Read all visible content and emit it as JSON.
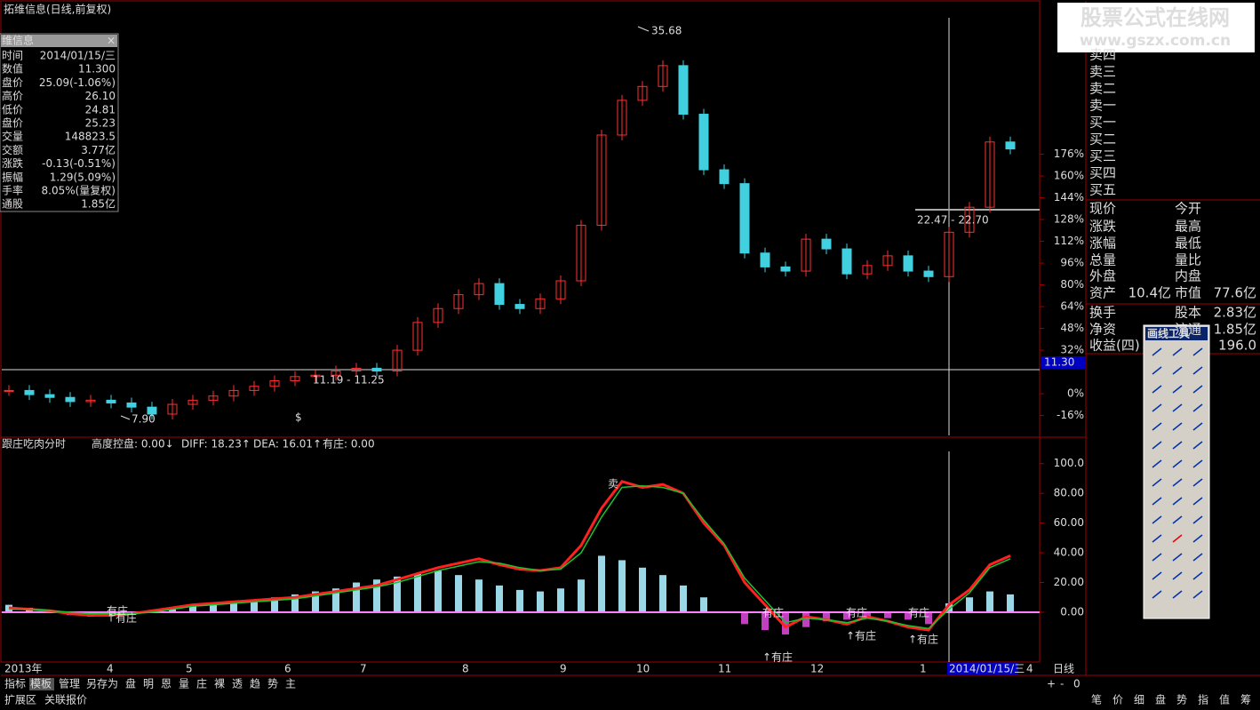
{
  "window_title": "拓维信息(日线,前复权)",
  "info_panel": {
    "title": "维信息",
    "rows": [
      {
        "label": "时间",
        "value": "2014/01/15/三",
        "color": "#ddd"
      },
      {
        "label": "数值",
        "value": "11.300",
        "color": "#ddd"
      },
      {
        "label": "盘价",
        "value": "25.09(-1.06%)",
        "color": "#2ecc40"
      },
      {
        "label": "高价",
        "value": "26.10",
        "color": "#ff3030"
      },
      {
        "label": "低价",
        "value": "24.81",
        "color": "#2ecc40"
      },
      {
        "label": "盘价",
        "value": "25.23",
        "color": "#2ecc40"
      },
      {
        "label": "交量",
        "value": "148823.5",
        "color": "#ddd"
      },
      {
        "label": "交额",
        "value": "3.77亿",
        "color": "#ddd"
      },
      {
        "label": "涨跌",
        "value": "-0.13(-0.51%)",
        "color": "#2ecc40"
      },
      {
        "label": "振幅",
        "value": "1.29(5.09%)",
        "color": "#ddd"
      },
      {
        "label": "手率",
        "value": "8.05%(量复权)",
        "color": "#ddd"
      },
      {
        "label": "通股",
        "value": "1.85亿",
        "color": "#ddd"
      }
    ]
  },
  "price_chart": {
    "type": "candlestick",
    "close": [
      9.6,
      9.3,
      9.1,
      8.8,
      8.9,
      8.7,
      8.4,
      7.9,
      8.6,
      8.9,
      9.2,
      9.6,
      9.9,
      10.3,
      10.6,
      10.7,
      11.0,
      11.2,
      11.0,
      12.5,
      14.5,
      15.5,
      16.5,
      17.3,
      15.8,
      15.5,
      16.2,
      17.5,
      21.5,
      28.0,
      30.5,
      31.5,
      33.0,
      29.5,
      25.5,
      24.5,
      19.5,
      18.5,
      18.2,
      20.5,
      19.8,
      18.0,
      18.6,
      19.3,
      18.2,
      17.8,
      21.0,
      22.8,
      27.5,
      27.0
    ],
    "up_color": "#ff3030",
    "down_color": "#40d0e0",
    "ylim": [
      6.17,
      37.6
    ],
    "y2lim": [
      -32.6,
      288
    ],
    "y2ticks": [
      {
        "value": 176,
        "label": "176%"
      },
      {
        "value": 160,
        "label": "160%"
      },
      {
        "value": 144,
        "label": "144%"
      },
      {
        "value": 128,
        "label": "128%"
      },
      {
        "value": 112,
        "label": "112%"
      },
      {
        "value": 96,
        "label": "96%"
      },
      {
        "value": 80,
        "label": "80%"
      },
      {
        "value": 64,
        "label": "64%"
      },
      {
        "value": 48,
        "label": "48%"
      },
      {
        "value": 32,
        "label": "32%"
      },
      {
        "value": 0,
        "label": "0%"
      },
      {
        "value": -16,
        "label": "-16%"
      }
    ],
    "high_label": "35.68",
    "low_label": "7.90",
    "range_labels": [
      "11.19 - 11.25",
      "22.47 - 22.70"
    ],
    "cursor_label": "11.30",
    "marker": "$"
  },
  "indicator": {
    "type": "line",
    "name": "跟庄吃肉分时",
    "legend": [
      {
        "text": "高度控盘: 0.00↓",
        "color": "#e040e0"
      },
      {
        "text": "DIFF: 18.23↑",
        "color": "#ff3030"
      },
      {
        "text": "DEA: 16.01↑",
        "color": "#2ecc40"
      },
      {
        "text": "有庄: 0.00",
        "color": "#ddd"
      }
    ],
    "series": [
      {
        "name": "DIFF",
        "color": "#ff2020",
        "values": [
          3,
          2,
          1,
          -1,
          -2,
          -2,
          -1,
          1,
          3,
          5,
          6,
          7,
          8,
          9,
          10,
          12,
          14,
          16,
          18,
          22,
          26,
          30,
          33,
          36,
          32,
          29,
          28,
          30,
          45,
          70,
          88,
          84,
          86,
          80,
          60,
          45,
          20,
          5,
          -10,
          -3,
          -5,
          -8,
          -3,
          -6,
          -10,
          -12,
          5,
          15,
          32,
          38
        ]
      },
      {
        "name": "DEA",
        "color": "#20c030",
        "values": [
          2,
          2,
          1,
          0,
          -1,
          -1,
          -1,
          0,
          2,
          4,
          5,
          6,
          7,
          8,
          9,
          11,
          13,
          15,
          17,
          20,
          24,
          28,
          31,
          34,
          33,
          30,
          28,
          29,
          40,
          64,
          84,
          85,
          84,
          80,
          62,
          46,
          23,
          8,
          -7,
          -4,
          -5,
          -7,
          -4,
          -6,
          -9,
          -11,
          2,
          13,
          30,
          36
        ]
      }
    ],
    "bars": [
      5,
      3,
      1,
      -2,
      -3,
      -2,
      -1,
      1,
      3,
      5,
      6,
      7,
      8,
      10,
      12,
      14,
      16,
      20,
      22,
      24,
      26,
      28,
      25,
      22,
      18,
      15,
      14,
      16,
      22,
      38,
      35,
      30,
      25,
      18,
      10,
      0,
      -8,
      -12,
      -15,
      -10,
      -6,
      -5,
      -4,
      -4,
      -5,
      -8,
      6,
      10,
      14,
      12
    ],
    "bar_up_color": "#9ad8e8",
    "bar_down_color": "#c040c0",
    "ylim": [
      -33.5,
      110
    ],
    "yticks": [
      {
        "value": 100,
        "label": "100.0"
      },
      {
        "value": 80,
        "label": "80.00"
      },
      {
        "value": 60,
        "label": "60.00"
      },
      {
        "value": 40,
        "label": "40.00"
      },
      {
        "value": 20,
        "label": "20.00"
      },
      {
        "value": 0,
        "label": "0.00"
      }
    ],
    "annotations": [
      "有庄",
      "↑有庄",
      "有庄",
      "↑有庄",
      "有庄",
      "↑有庄",
      "有庄",
      "↑有庄",
      "卖"
    ]
  },
  "x_axis": {
    "labels": [
      "2013年",
      "4",
      "5",
      "6",
      "7",
      "8",
      "9",
      "10",
      "11",
      "12",
      "1",
      "4"
    ],
    "cursor_date": "2014/01/15/三",
    "period": "日线"
  },
  "quote_panel": {
    "logo": "股票公式在线网",
    "url": "www.gszx.com.cn",
    "book": [
      "卖四",
      "卖三",
      "卖二",
      "卖一",
      "买一",
      "买二",
      "买三",
      "买四",
      "买五"
    ],
    "stats": [
      [
        "现价",
        "",
        "今开",
        ""
      ],
      [
        "涨跌",
        "",
        "最高",
        ""
      ],
      [
        "涨幅",
        "",
        "最低",
        ""
      ],
      [
        "总量",
        "",
        "量比",
        ""
      ],
      [
        "外盘",
        "",
        "内盘",
        ""
      ],
      [
        "资产",
        "10.4亿",
        "市值",
        "77.6亿"
      ],
      [
        "换手",
        "",
        "股本",
        "2.83亿"
      ],
      [
        "净资",
        "",
        "流通",
        "1.85亿"
      ],
      [
        "收益(四)",
        "",
        "",
        "196.0"
      ]
    ]
  },
  "draw_tools": {
    "title": "画线工具"
  },
  "tabs": {
    "main": [
      "指标",
      "模板",
      "管理",
      "另存为",
      "盘",
      "明",
      "恩",
      "量",
      "庄",
      "裸",
      "透",
      "趋",
      "势",
      "主"
    ],
    "sub": [
      "扩展区",
      "关联报价"
    ],
    "right": [
      "笔",
      "价",
      "细",
      "盘",
      "势",
      "指",
      "值",
      "筹"
    ],
    "zoom": [
      "+",
      "-",
      "0"
    ]
  }
}
